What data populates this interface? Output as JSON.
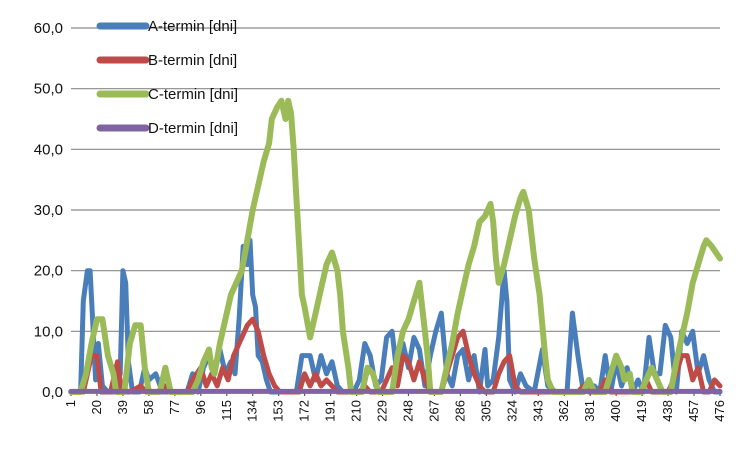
{
  "chart_data": {
    "type": "line",
    "title": "",
    "xlabel": "",
    "ylabel": "",
    "x_ticks": [
      1,
      20,
      39,
      58,
      77,
      96,
      115,
      134,
      153,
      172,
      191,
      210,
      229,
      248,
      267,
      286,
      305,
      324,
      343,
      362,
      381,
      400,
      419,
      438,
      457,
      476
    ],
    "xlim": [
      1,
      476
    ],
    "ylim": [
      0,
      60
    ],
    "y_ticks": [
      0,
      10,
      20,
      30,
      40,
      50,
      60
    ],
    "y_tick_labels": [
      "0,0",
      "10,0",
      "20,0",
      "30,0",
      "40,0",
      "50,0",
      "60,0"
    ],
    "grid": true,
    "legend_position": "top-left",
    "series": [
      {
        "name": "A-termin [dni]",
        "color": "#4a7ebb",
        "points": [
          [
            1,
            0
          ],
          [
            8,
            0
          ],
          [
            10,
            15
          ],
          [
            13,
            20
          ],
          [
            15,
            20
          ],
          [
            17,
            11
          ],
          [
            19,
            2
          ],
          [
            21,
            8
          ],
          [
            24,
            1
          ],
          [
            28,
            0
          ],
          [
            33,
            0
          ],
          [
            37,
            3
          ],
          [
            39,
            20
          ],
          [
            41,
            18
          ],
          [
            43,
            5
          ],
          [
            46,
            0
          ],
          [
            51,
            0
          ],
          [
            55,
            4
          ],
          [
            58,
            2
          ],
          [
            63,
            3
          ],
          [
            68,
            0
          ],
          [
            86,
            0
          ],
          [
            90,
            3
          ],
          [
            94,
            0
          ],
          [
            98,
            4
          ],
          [
            102,
            6
          ],
          [
            106,
            3
          ],
          [
            110,
            7
          ],
          [
            114,
            3
          ],
          [
            118,
            5
          ],
          [
            121,
            3
          ],
          [
            124,
            12
          ],
          [
            127,
            24
          ],
          [
            130,
            21
          ],
          [
            132,
            25
          ],
          [
            134,
            16
          ],
          [
            136,
            14
          ],
          [
            138,
            6
          ],
          [
            141,
            5
          ],
          [
            144,
            2
          ],
          [
            147,
            0
          ],
          [
            166,
            0
          ],
          [
            170,
            6
          ],
          [
            176,
            6
          ],
          [
            180,
            2
          ],
          [
            184,
            6
          ],
          [
            188,
            3
          ],
          [
            192,
            5
          ],
          [
            196,
            1
          ],
          [
            200,
            0
          ],
          [
            208,
            0
          ],
          [
            212,
            2
          ],
          [
            216,
            8
          ],
          [
            220,
            6
          ],
          [
            224,
            1
          ],
          [
            228,
            2
          ],
          [
            232,
            9
          ],
          [
            236,
            10
          ],
          [
            240,
            2
          ],
          [
            244,
            8
          ],
          [
            248,
            4
          ],
          [
            252,
            9
          ],
          [
            256,
            7
          ],
          [
            260,
            1
          ],
          [
            264,
            6
          ],
          [
            268,
            10
          ],
          [
            272,
            13
          ],
          [
            276,
            3
          ],
          [
            280,
            1
          ],
          [
            284,
            6
          ],
          [
            288,
            7
          ],
          [
            292,
            2
          ],
          [
            296,
            6
          ],
          [
            300,
            0
          ],
          [
            304,
            7
          ],
          [
            306,
            1
          ],
          [
            310,
            2
          ],
          [
            314,
            9
          ],
          [
            318,
            20
          ],
          [
            320,
            15
          ],
          [
            322,
            2
          ],
          [
            326,
            0
          ],
          [
            330,
            3
          ],
          [
            334,
            1
          ],
          [
            340,
            0
          ],
          [
            346,
            7
          ],
          [
            350,
            1
          ],
          [
            356,
            0
          ],
          [
            364,
            0
          ],
          [
            368,
            13
          ],
          [
            372,
            6
          ],
          [
            376,
            0
          ],
          [
            384,
            1
          ],
          [
            388,
            0
          ],
          [
            392,
            6
          ],
          [
            396,
            0
          ],
          [
            400,
            5
          ],
          [
            404,
            1
          ],
          [
            408,
            4
          ],
          [
            412,
            0
          ],
          [
            416,
            2
          ],
          [
            420,
            0
          ],
          [
            424,
            9
          ],
          [
            428,
            3
          ],
          [
            432,
            3
          ],
          [
            436,
            11
          ],
          [
            440,
            9
          ],
          [
            444,
            0
          ],
          [
            448,
            10
          ],
          [
            452,
            8
          ],
          [
            456,
            10
          ],
          [
            460,
            3
          ],
          [
            464,
            6
          ],
          [
            468,
            2
          ],
          [
            472,
            0
          ],
          [
            476,
            0
          ]
        ]
      },
      {
        "name": "B-termin [dni]",
        "color": "#be4b48",
        "points": [
          [
            1,
            0
          ],
          [
            10,
            0
          ],
          [
            16,
            6
          ],
          [
            20,
            6
          ],
          [
            23,
            0
          ],
          [
            30,
            0
          ],
          [
            35,
            5
          ],
          [
            38,
            0
          ],
          [
            44,
            0
          ],
          [
            52,
            1
          ],
          [
            56,
            0
          ],
          [
            64,
            0
          ],
          [
            70,
            1
          ],
          [
            74,
            0
          ],
          [
            86,
            0
          ],
          [
            90,
            2
          ],
          [
            96,
            4
          ],
          [
            100,
            1
          ],
          [
            104,
            3
          ],
          [
            108,
            1
          ],
          [
            112,
            4
          ],
          [
            116,
            2
          ],
          [
            120,
            6
          ],
          [
            124,
            8
          ],
          [
            130,
            11
          ],
          [
            134,
            12
          ],
          [
            138,
            10
          ],
          [
            142,
            6
          ],
          [
            146,
            3
          ],
          [
            150,
            1
          ],
          [
            154,
            0
          ],
          [
            168,
            0
          ],
          [
            172,
            3
          ],
          [
            176,
            1
          ],
          [
            180,
            3
          ],
          [
            184,
            1
          ],
          [
            188,
            2
          ],
          [
            192,
            1
          ],
          [
            196,
            0
          ],
          [
            212,
            0
          ],
          [
            216,
            1
          ],
          [
            220,
            0
          ],
          [
            228,
            0
          ],
          [
            232,
            2
          ],
          [
            236,
            4
          ],
          [
            240,
            1
          ],
          [
            244,
            6
          ],
          [
            248,
            5
          ],
          [
            252,
            2
          ],
          [
            256,
            5
          ],
          [
            260,
            2
          ],
          [
            264,
            0
          ],
          [
            272,
            0
          ],
          [
            276,
            3
          ],
          [
            280,
            6
          ],
          [
            284,
            9
          ],
          [
            288,
            10
          ],
          [
            292,
            6
          ],
          [
            296,
            3
          ],
          [
            300,
            1
          ],
          [
            304,
            0
          ],
          [
            310,
            0
          ],
          [
            314,
            3
          ],
          [
            318,
            5
          ],
          [
            322,
            6
          ],
          [
            326,
            1
          ],
          [
            330,
            0
          ],
          [
            372,
            0
          ],
          [
            376,
            1
          ],
          [
            380,
            0
          ],
          [
            388,
            0
          ],
          [
            392,
            2
          ],
          [
            396,
            0
          ],
          [
            418,
            0
          ],
          [
            422,
            2
          ],
          [
            426,
            0
          ],
          [
            438,
            0
          ],
          [
            444,
            3
          ],
          [
            448,
            6
          ],
          [
            452,
            6
          ],
          [
            456,
            2
          ],
          [
            460,
            4
          ],
          [
            464,
            0
          ],
          [
            468,
            0
          ],
          [
            472,
            2
          ],
          [
            476,
            1
          ]
        ]
      },
      {
        "name": "C-termin [dni]",
        "color": "#9bbb59",
        "points": [
          [
            1,
            0
          ],
          [
            8,
            0
          ],
          [
            12,
            3
          ],
          [
            16,
            8
          ],
          [
            20,
            12
          ],
          [
            24,
            12
          ],
          [
            28,
            6
          ],
          [
            32,
            3
          ],
          [
            34,
            0
          ],
          [
            40,
            0
          ],
          [
            44,
            8
          ],
          [
            48,
            11
          ],
          [
            52,
            11
          ],
          [
            55,
            4
          ],
          [
            58,
            0
          ],
          [
            66,
            0
          ],
          [
            70,
            4
          ],
          [
            74,
            0
          ],
          [
            90,
            0
          ],
          [
            94,
            2
          ],
          [
            98,
            5
          ],
          [
            102,
            7
          ],
          [
            104,
            4
          ],
          [
            106,
            3
          ],
          [
            110,
            8
          ],
          [
            114,
            12
          ],
          [
            118,
            16
          ],
          [
            122,
            18
          ],
          [
            126,
            20
          ],
          [
            130,
            25
          ],
          [
            134,
            30
          ],
          [
            138,
            34
          ],
          [
            142,
            38
          ],
          [
            146,
            41
          ],
          [
            148,
            45
          ],
          [
            152,
            47
          ],
          [
            155,
            48
          ],
          [
            158,
            45
          ],
          [
            160,
            48
          ],
          [
            162,
            46
          ],
          [
            164,
            40
          ],
          [
            166,
            32
          ],
          [
            168,
            24
          ],
          [
            170,
            16
          ],
          [
            172,
            14
          ],
          [
            176,
            9
          ],
          [
            180,
            13
          ],
          [
            184,
            17
          ],
          [
            188,
            21
          ],
          [
            192,
            23
          ],
          [
            196,
            20
          ],
          [
            198,
            16
          ],
          [
            200,
            10
          ],
          [
            204,
            4
          ],
          [
            206,
            0
          ],
          [
            214,
            0
          ],
          [
            218,
            4
          ],
          [
            222,
            3
          ],
          [
            226,
            0
          ],
          [
            236,
            0
          ],
          [
            240,
            6
          ],
          [
            244,
            10
          ],
          [
            248,
            12
          ],
          [
            252,
            15
          ],
          [
            256,
            18
          ],
          [
            260,
            10
          ],
          [
            262,
            6
          ],
          [
            264,
            0
          ],
          [
            272,
            0
          ],
          [
            276,
            4
          ],
          [
            280,
            8
          ],
          [
            284,
            13
          ],
          [
            288,
            17
          ],
          [
            292,
            21
          ],
          [
            296,
            24
          ],
          [
            300,
            28
          ],
          [
            304,
            29
          ],
          [
            308,
            31
          ],
          [
            310,
            28
          ],
          [
            312,
            22
          ],
          [
            314,
            18
          ],
          [
            318,
            21
          ],
          [
            322,
            25
          ],
          [
            326,
            29
          ],
          [
            330,
            32
          ],
          [
            332,
            33
          ],
          [
            336,
            30
          ],
          [
            340,
            22
          ],
          [
            344,
            16
          ],
          [
            348,
            6
          ],
          [
            350,
            2
          ],
          [
            354,
            0
          ],
          [
            376,
            0
          ],
          [
            380,
            2
          ],
          [
            384,
            0
          ],
          [
            392,
            0
          ],
          [
            396,
            3
          ],
          [
            400,
            6
          ],
          [
            404,
            4
          ],
          [
            406,
            2
          ],
          [
            410,
            3
          ],
          [
            412,
            0
          ],
          [
            418,
            0
          ],
          [
            422,
            2
          ],
          [
            426,
            4
          ],
          [
            430,
            2
          ],
          [
            434,
            0
          ],
          [
            440,
            0
          ],
          [
            444,
            5
          ],
          [
            448,
            9
          ],
          [
            452,
            13
          ],
          [
            456,
            18
          ],
          [
            460,
            21
          ],
          [
            464,
            24
          ],
          [
            466,
            25
          ],
          [
            470,
            24
          ],
          [
            476,
            22
          ]
        ]
      },
      {
        "name": "D-termin [dni]",
        "color": "#8064a2",
        "points": [
          [
            1,
            0.1
          ],
          [
            476,
            0.1
          ]
        ]
      }
    ]
  }
}
